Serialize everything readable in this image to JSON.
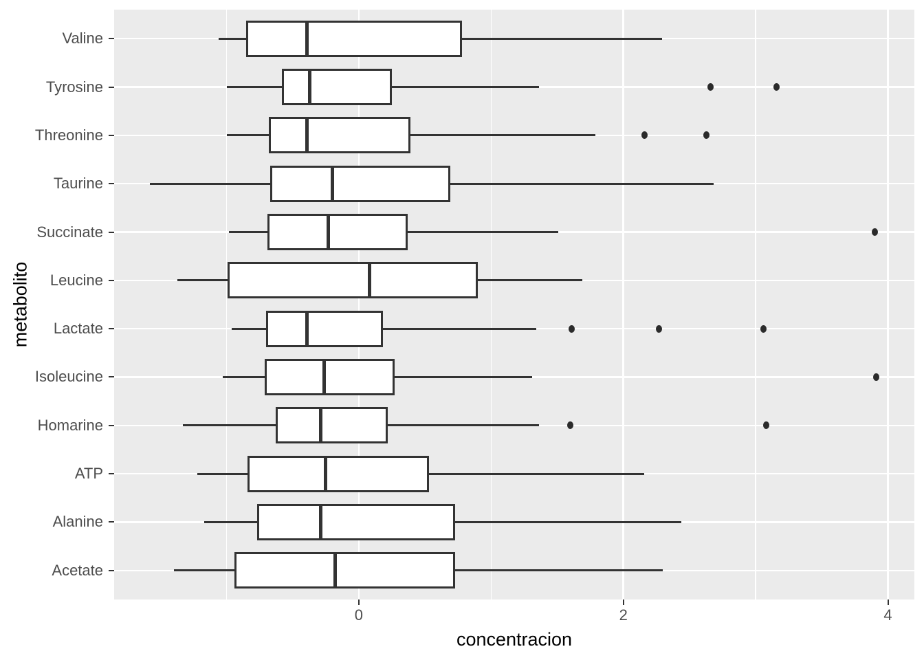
{
  "chart_data": {
    "type": "boxplot",
    "orientation": "horizontal",
    "title": "",
    "xlabel": "concentracion",
    "ylabel": "metabolito",
    "x_major_ticks": [
      0,
      2,
      4
    ],
    "x_minor_gridlines": [
      -1,
      1,
      3
    ],
    "x_range": [
      -1.85,
      4.2
    ],
    "grid": "on",
    "legend": "none",
    "categories_top_to_bottom": [
      "Valine",
      "Tyrosine",
      "Threonine",
      "Taurine",
      "Succinate",
      "Leucine",
      "Lactate",
      "Isoleucine",
      "Homarine",
      "ATP",
      "Alanine",
      "Acetate"
    ],
    "series": [
      {
        "name": "Valine",
        "whisker_low": -1.06,
        "q1": -0.85,
        "median": -0.39,
        "q3": 0.78,
        "whisker_high": 2.29,
        "outliers": []
      },
      {
        "name": "Tyrosine",
        "whisker_low": -1.0,
        "q1": -0.58,
        "median": -0.37,
        "q3": 0.25,
        "whisker_high": 1.36,
        "outliers": [
          2.66,
          3.16
        ]
      },
      {
        "name": "Threonine",
        "whisker_low": -1.0,
        "q1": -0.68,
        "median": -0.39,
        "q3": 0.39,
        "whisker_high": 1.79,
        "outliers": [
          2.16,
          2.63
        ]
      },
      {
        "name": "Taurine",
        "whisker_low": -1.58,
        "q1": -0.67,
        "median": -0.2,
        "q3": 0.69,
        "whisker_high": 2.68,
        "outliers": []
      },
      {
        "name": "Succinate",
        "whisker_low": -0.98,
        "q1": -0.69,
        "median": -0.23,
        "q3": 0.37,
        "whisker_high": 1.51,
        "outliers": [
          3.9
        ]
      },
      {
        "name": "Leucine",
        "whisker_low": -1.37,
        "q1": -0.99,
        "median": 0.08,
        "q3": 0.9,
        "whisker_high": 1.69,
        "outliers": []
      },
      {
        "name": "Lactate",
        "whisker_low": -0.96,
        "q1": -0.7,
        "median": -0.39,
        "q3": 0.18,
        "whisker_high": 1.34,
        "outliers": [
          1.61,
          2.27,
          3.06
        ]
      },
      {
        "name": "Isoleucine",
        "whisker_low": -1.03,
        "q1": -0.71,
        "median": -0.26,
        "q3": 0.27,
        "whisker_high": 1.31,
        "outliers": [
          3.91
        ]
      },
      {
        "name": "Homarine",
        "whisker_low": -1.33,
        "q1": -0.63,
        "median": -0.29,
        "q3": 0.22,
        "whisker_high": 1.36,
        "outliers": [
          1.6,
          3.08
        ]
      },
      {
        "name": "ATP",
        "whisker_low": -1.22,
        "q1": -0.84,
        "median": -0.25,
        "q3": 0.53,
        "whisker_high": 2.16,
        "outliers": []
      },
      {
        "name": "Alanine",
        "whisker_low": -1.17,
        "q1": -0.77,
        "median": -0.29,
        "q3": 0.73,
        "whisker_high": 2.44,
        "outliers": []
      },
      {
        "name": "Acetate",
        "whisker_low": -1.4,
        "q1": -0.94,
        "median": -0.18,
        "q3": 0.73,
        "whisker_high": 2.3,
        "outliers": []
      }
    ]
  },
  "colors": {
    "page_bg": "#FFFFFF",
    "panel_bg": "#EBEBEB",
    "gridline": "#FFFFFF",
    "box_border": "#333333",
    "box_fill": "#FFFFFF",
    "median": "#333333",
    "whisker": "#333333",
    "outlier": "#2B2B2B",
    "tick_mark": "#333333",
    "axis_text": "#4D4D4D",
    "axis_title": "#000000"
  }
}
